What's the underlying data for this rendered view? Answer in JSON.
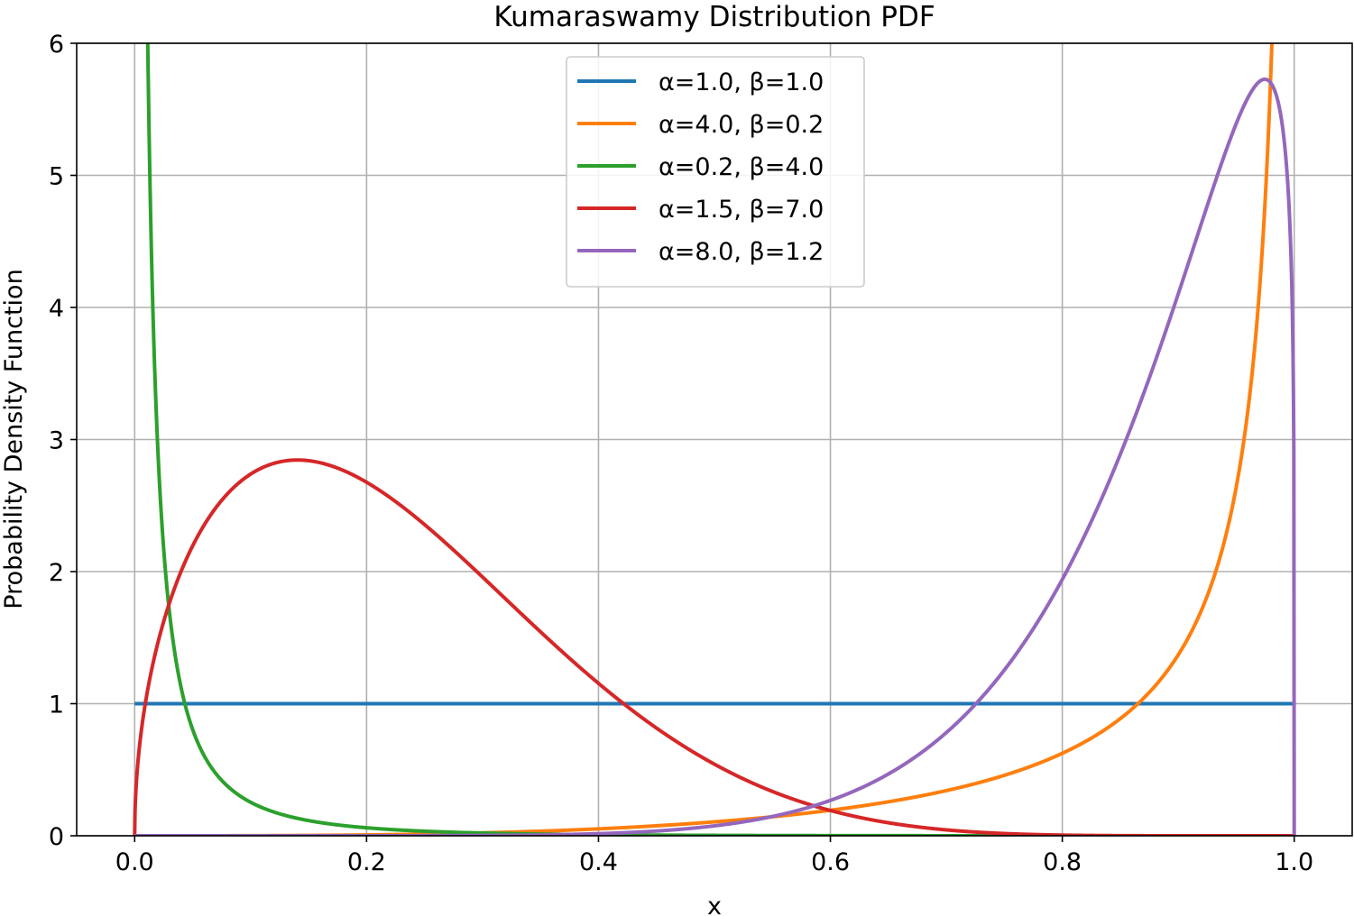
{
  "chart_data": {
    "type": "line",
    "title": "Kumaraswamy Distribution PDF",
    "xlabel": "x",
    "ylabel": "Probability Density Function",
    "xlim": [
      -0.05,
      1.05
    ],
    "ylim": [
      0,
      6
    ],
    "xticks": [
      0.0,
      0.2,
      0.4,
      0.6,
      0.8,
      1.0
    ],
    "xtick_labels": [
      "0.0",
      "0.2",
      "0.4",
      "0.6",
      "0.8",
      "1.0"
    ],
    "yticks": [
      0,
      1,
      2,
      3,
      4,
      5,
      6
    ],
    "ytick_labels": [
      "0",
      "1",
      "2",
      "3",
      "4",
      "5",
      "6"
    ],
    "grid": true,
    "legend_position": "top-center",
    "series": [
      {
        "name": "α=1.0, β=1.0",
        "a": 1.0,
        "b": 1.0,
        "color": "#1f77b4"
      },
      {
        "name": "α=4.0, β=0.2",
        "a": 4.0,
        "b": 0.2,
        "color": "#ff7f0e"
      },
      {
        "name": "α=0.2, β=4.0",
        "a": 0.2,
        "b": 4.0,
        "color": "#2ca02c"
      },
      {
        "name": "α=1.5, β=7.0",
        "a": 1.5,
        "b": 7.0,
        "color": "#d62728"
      },
      {
        "name": "α=8.0, β=1.2",
        "a": 8.0,
        "b": 1.2,
        "color": "#9467bd"
      }
    ],
    "x_range": [
      0.0,
      1.0
    ]
  }
}
